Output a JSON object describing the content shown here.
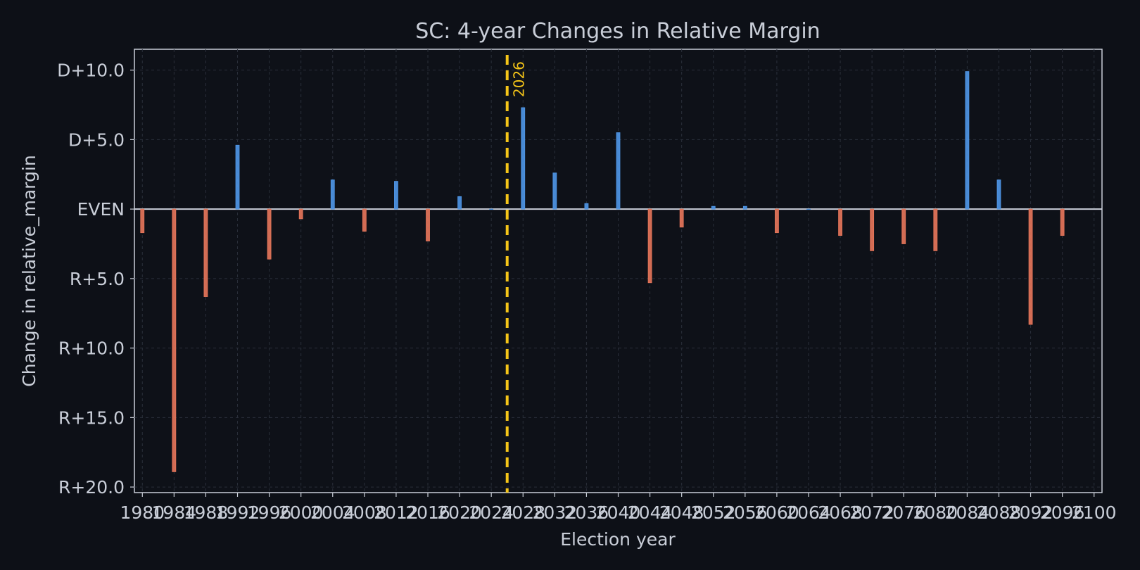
{
  "chart_data": {
    "type": "bar",
    "title": "SC: 4-year Changes in Relative Margin",
    "xlabel": "Election year",
    "ylabel": "Change in relative_margin",
    "xlim": [
      1979,
      2101
    ],
    "ylim": [
      -20.4,
      11.5
    ],
    "yticks": [
      {
        "value": 10,
        "label": "D+10.0"
      },
      {
        "value": 5,
        "label": "D+5.0"
      },
      {
        "value": 0,
        "label": "EVEN"
      },
      {
        "value": -5,
        "label": "R+5.0"
      },
      {
        "value": -10,
        "label": "R+10.0"
      },
      {
        "value": -15,
        "label": "R+15.0"
      },
      {
        "value": -20,
        "label": "R+20.0"
      }
    ],
    "xticks": [
      "1980",
      "1984",
      "1988",
      "1992",
      "1996",
      "2000",
      "2004",
      "2008",
      "2012",
      "2016",
      "2020",
      "2024",
      "2028",
      "2032",
      "2036",
      "2040",
      "2044",
      "2048",
      "2052",
      "2056",
      "2060",
      "2064",
      "2068",
      "2072",
      "2076",
      "2080",
      "2084",
      "2088",
      "2092",
      "2096",
      "2100"
    ],
    "marker": {
      "year": 2026,
      "label": "2026"
    },
    "grid": true,
    "colors": {
      "positive": "#4f97e8",
      "negative": "#e8775b",
      "marker": "#f5c518",
      "zero_line": "#c9ced8"
    },
    "years": [
      1980,
      1984,
      1988,
      1992,
      1996,
      2000,
      2004,
      2008,
      2012,
      2016,
      2020,
      2024,
      2028,
      2032,
      2036,
      2040,
      2044,
      2048,
      2052,
      2056,
      2060,
      2064,
      2068,
      2072,
      2076,
      2080,
      2084,
      2088,
      2092,
      2096
    ],
    "values": [
      -1.7,
      -18.9,
      -6.3,
      4.6,
      -3.6,
      -0.7,
      2.1,
      -1.6,
      2.0,
      -2.3,
      0.9,
      0.0,
      7.3,
      2.6,
      0.4,
      5.5,
      -5.3,
      -1.3,
      0.2,
      0.2,
      -1.7,
      0.0,
      -1.9,
      -3.0,
      -2.5,
      -3.0,
      9.9,
      2.1,
      -8.3,
      -1.9
    ]
  }
}
